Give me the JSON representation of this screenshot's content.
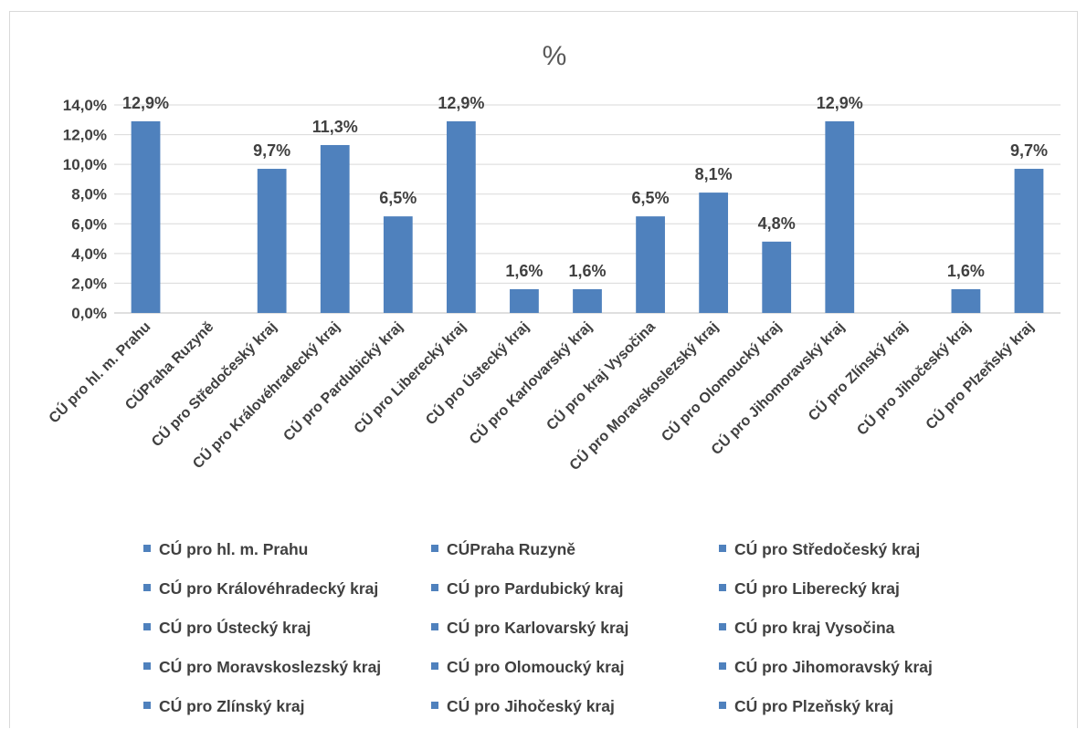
{
  "chart_data": {
    "type": "bar",
    "title": "%",
    "xlabel": "",
    "ylabel": "",
    "ylim": [
      0,
      14
    ],
    "yticks": [
      "0,0%",
      "2,0%",
      "4,0%",
      "6,0%",
      "8,0%",
      "10,0%",
      "12,0%",
      "14,0%"
    ],
    "grid": true,
    "legend_position": "bottom",
    "bar_color": "#4f81bd",
    "categories": [
      "CÚ pro hl. m. Prahu",
      "CÚPraha Ruzyně",
      "CÚ pro Středočeský kraj",
      "CÚ pro Královéhradecký kraj",
      "CÚ pro Pardubický kraj",
      "CÚ pro Liberecký kraj",
      "CÚ pro Ústecký kraj",
      "CÚ pro Karlovarský kraj",
      "CÚ pro kraj Vysočina",
      "CÚ pro Moravskoslezský kraj",
      "CÚ pro Olomoucký kraj",
      "CÚ pro Jihomoravský kraj",
      "CÚ pro Zlínský kraj",
      "CÚ pro Jihočeský kraj",
      "CÚ pro Plzeňský kraj"
    ],
    "values": [
      12.9,
      0,
      9.7,
      11.3,
      6.5,
      12.9,
      1.6,
      1.6,
      6.5,
      8.1,
      4.8,
      12.9,
      0,
      1.6,
      9.7
    ],
    "data_labels": [
      "12,9%",
      "",
      "9,7%",
      "11,3%",
      "6,5%",
      "12,9%",
      "1,6%",
      "1,6%",
      "6,5%",
      "8,1%",
      "4,8%",
      "12,9%",
      "",
      "1,6%",
      "9,7%"
    ]
  }
}
